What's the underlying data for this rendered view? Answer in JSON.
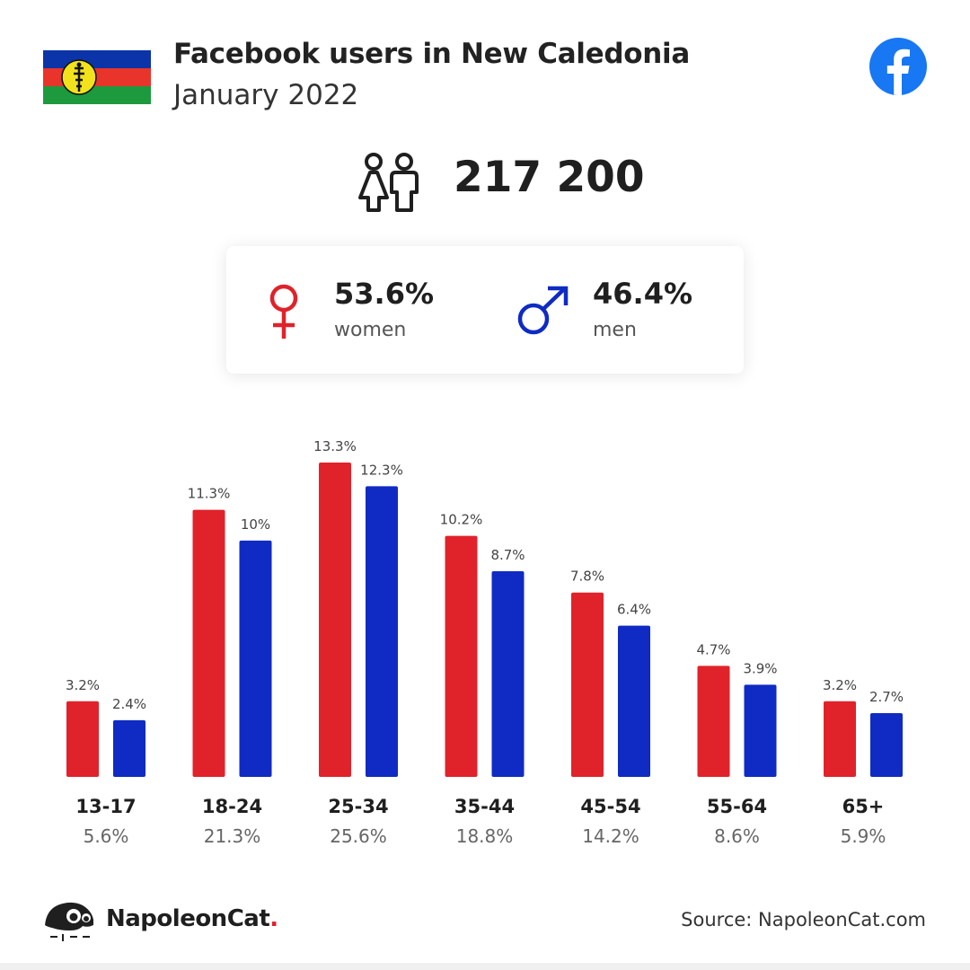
{
  "header": {
    "title": "Facebook users in New Caledonia",
    "subtitle": "January 2022"
  },
  "total_users": "217 200",
  "gender": {
    "women": {
      "pct": "53.6%",
      "label": "women"
    },
    "men": {
      "pct": "46.4%",
      "label": "men"
    }
  },
  "colors": {
    "women": "#e0222a",
    "men": "#0f2bc4",
    "facebook": "#1877f2"
  },
  "icons": [
    "flag-new-caledonia",
    "facebook-icon",
    "users-icon",
    "female-icon",
    "male-icon",
    "napoleoncat-logo"
  ],
  "chart_data": {
    "type": "bar",
    "categories": [
      "13-17",
      "18-24",
      "25-34",
      "35-44",
      "45-54",
      "55-64",
      "65+"
    ],
    "category_totals": [
      "5.6%",
      "21.3%",
      "25.6%",
      "18.8%",
      "14.2%",
      "8.6%",
      "5.9%"
    ],
    "series": [
      {
        "values": [
          3.2,
          11.3,
          13.3,
          10.2,
          7.8,
          4.7,
          3.2
        ],
        "labels": [
          "3.2%",
          "11.3%",
          "13.3%",
          "10.2%",
          "7.8%",
          "4.7%",
          "3.2%"
        ],
        "color": "#e0222a"
      },
      {
        "values": [
          2.4,
          10,
          12.3,
          8.7,
          6.4,
          3.9,
          2.7
        ],
        "labels": [
          "2.4%",
          "10%",
          "12.3%",
          "8.7%",
          "6.4%",
          "3.9%",
          "2.7%"
        ],
        "color": "#0f2bc4"
      }
    ],
    "title": "",
    "xlabel": "",
    "ylabel": "",
    "ylim": [
      0,
      13.3
    ],
    "grid": false
  },
  "footer": {
    "brand": "NapoleonCat",
    "brand_dot": ".",
    "source": "Source: NapoleonCat.com"
  }
}
